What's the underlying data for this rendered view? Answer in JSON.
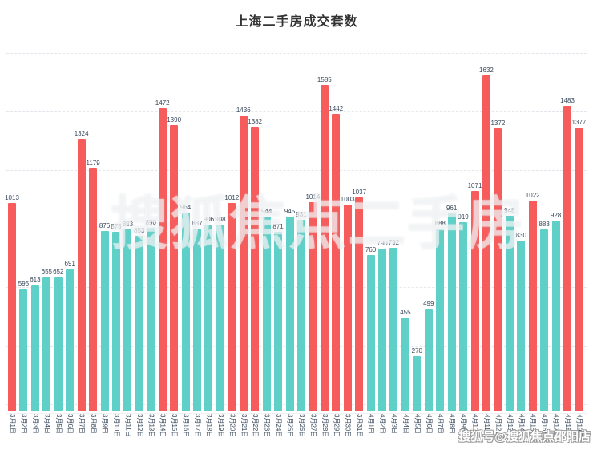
{
  "title": "上海二手房成交套数",
  "colors": {
    "bar_high": "#f75c5c",
    "bar_normal": "#5fd0c7",
    "label": "#37475a",
    "grid": "#e3e7ec",
    "title": "#333333",
    "background": "#ffffff"
  },
  "watermarks": {
    "center": "搜狐焦点二手房",
    "bottom_right": "搜狐号@搜狐焦点邵阳店"
  },
  "chart_data": {
    "type": "bar",
    "title": "上海二手房成交套数",
    "categories": [
      "3月1日",
      "3月2日",
      "3月3日",
      "3月4日",
      "3月5日",
      "3月6日",
      "3月7日",
      "3月8日",
      "3月9日",
      "3月10日",
      "3月11日",
      "3月12日",
      "3月13日",
      "3月14日",
      "3月15日",
      "3月16日",
      "3月17日",
      "3月18日",
      "3月19日",
      "3月20日",
      "3月21日",
      "3月22日",
      "3月23日",
      "3月24日",
      "3月25日",
      "3月26日",
      "3月27日",
      "3月28日",
      "3月29日",
      "3月30日",
      "3月31日",
      "4月1日",
      "4月2日",
      "4月3日",
      "4月4日",
      "4月5日",
      "4月6日",
      "4月7日",
      "4月8日",
      "4月9日",
      "4月10日",
      "4月11日",
      "4月12日",
      "4月13日",
      "4月14日",
      "4月15日",
      "4月16日",
      "4月17日",
      "4月18日",
      "4月19日"
    ],
    "values": [
      1013,
      595,
      613,
      655,
      652,
      691,
      1324,
      1179,
      876,
      873,
      883,
      853,
      890,
      1472,
      1390,
      964,
      887,
      906,
      908,
      1012,
      1436,
      1382,
      944,
      871,
      945,
      931,
      1014,
      1585,
      1442,
      1003,
      1037,
      760,
      790,
      792,
      455,
      270,
      499,
      888,
      961,
      919,
      1071,
      1632,
      1372,
      948,
      830,
      1022,
      883,
      928,
      1483,
      1377
    ],
    "value_labels": "above each bar",
    "threshold": 1000,
    "color_rule": "value >= 1000 red, else teal",
    "xlabel": "",
    "ylabel": "",
    "ylim": [
      0,
      1700
    ],
    "grid": "horizontal-dashed",
    "x_tick_rotation": 90,
    "legend": "none"
  }
}
